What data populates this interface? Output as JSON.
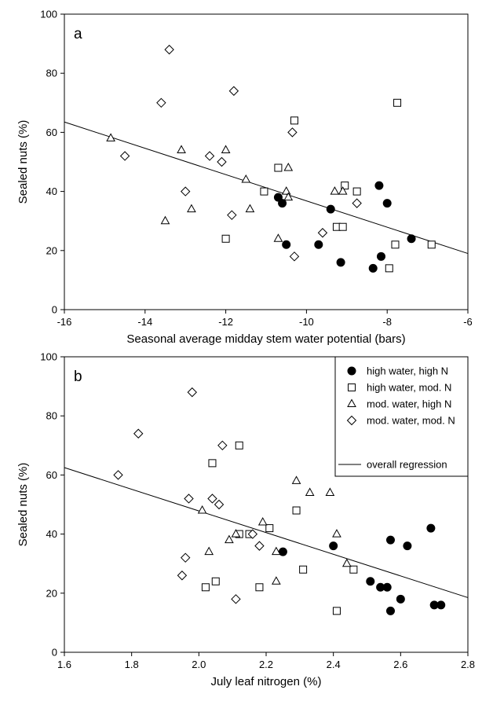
{
  "chart_data": [
    {
      "type": "scatter",
      "panel_label": "a",
      "xlabel": "Seasonal average midday stem water potential (bars)",
      "ylabel": "Sealed nuts (%)",
      "xlim": [
        -16,
        -6
      ],
      "ylim": [
        0,
        100
      ],
      "xticks": [
        -16,
        -14,
        -12,
        -10,
        -8,
        -6
      ],
      "yticks": [
        0,
        20,
        40,
        60,
        80,
        100
      ],
      "regression": {
        "x": [
          -16,
          -6
        ],
        "y": [
          63.5,
          19
        ]
      },
      "series": [
        {
          "name": "high water, high N",
          "marker": "circle-filled",
          "x": [
            -10.7,
            -10.6,
            -10.5,
            -9.7,
            -9.4,
            -9.15,
            -8.35,
            -8.2,
            -8.15,
            -8.0,
            -7.4
          ],
          "y": [
            38,
            36,
            22,
            22,
            34,
            16,
            14,
            42,
            18,
            36,
            24
          ]
        },
        {
          "name": "high water, mod. N",
          "marker": "square-open",
          "x": [
            -12.0,
            -10.7,
            -11.05,
            -10.3,
            -9.25,
            -9.1,
            -9.05,
            -8.75,
            -7.95,
            -7.8,
            -7.75,
            -6.9
          ],
          "y": [
            24,
            48,
            40,
            64,
            28,
            28,
            42,
            40,
            14,
            22,
            70,
            22
          ]
        },
        {
          "name": "mod. water, high N",
          "marker": "triangle-open",
          "x": [
            -14.85,
            -13.5,
            -13.1,
            -12.85,
            -12.0,
            -11.5,
            -11.4,
            -10.7,
            -10.5,
            -10.45,
            -10.45,
            -9.3,
            -9.1
          ],
          "y": [
            58,
            30,
            54,
            34,
            54,
            44,
            34,
            24,
            40,
            38,
            48,
            40,
            40
          ]
        },
        {
          "name": "mod. water, mod. N",
          "marker": "diamond-open",
          "x": [
            -14.5,
            -13.6,
            -13.4,
            -13.0,
            -12.4,
            -12.1,
            -11.85,
            -11.8,
            -10.35,
            -10.3,
            -9.6,
            -8.75
          ],
          "y": [
            52,
            70,
            88,
            40,
            52,
            50,
            32,
            74,
            60,
            18,
            26,
            36
          ]
        }
      ]
    },
    {
      "type": "scatter",
      "panel_label": "b",
      "xlabel": "July leaf nitrogen (%)",
      "ylabel": "Sealed nuts (%)",
      "xlim": [
        1.6,
        2.8
      ],
      "ylim": [
        0,
        100
      ],
      "xticks": [
        1.6,
        1.8,
        2.0,
        2.2,
        2.4,
        2.6,
        2.8
      ],
      "yticks": [
        0,
        20,
        40,
        60,
        80,
        100
      ],
      "legend_position": "top-right",
      "regression_label": "overall regression",
      "regression": {
        "x": [
          1.6,
          2.8
        ],
        "y": [
          62.5,
          18.5
        ]
      },
      "series": [
        {
          "name": "high water, high N",
          "marker": "circle-filled",
          "x": [
            2.25,
            2.4,
            2.51,
            2.54,
            2.56,
            2.57,
            2.57,
            2.6,
            2.62,
            2.69,
            2.7,
            2.72
          ],
          "y": [
            34,
            36,
            24,
            22,
            22,
            38,
            14,
            18,
            36,
            42,
            16,
            16
          ]
        },
        {
          "name": "high water, mod. N",
          "marker": "square-open",
          "x": [
            2.02,
            2.04,
            2.05,
            2.12,
            2.12,
            2.15,
            2.18,
            2.21,
            2.29,
            2.31,
            2.41,
            2.46
          ],
          "y": [
            22,
            64,
            24,
            70,
            40,
            40,
            22,
            42,
            48,
            28,
            14,
            28
          ]
        },
        {
          "name": "mod. water, high N",
          "marker": "triangle-open",
          "x": [
            2.01,
            2.03,
            2.09,
            2.11,
            2.19,
            2.23,
            2.23,
            2.29,
            2.33,
            2.39,
            2.41,
            2.44
          ],
          "y": [
            48,
            34,
            38,
            40,
            44,
            34,
            24,
            58,
            54,
            54,
            40,
            30
          ]
        },
        {
          "name": "mod. water, mod. N",
          "marker": "diamond-open",
          "x": [
            1.76,
            1.82,
            1.95,
            1.96,
            1.97,
            1.98,
            2.04,
            2.06,
            2.07,
            2.11,
            2.16,
            2.18
          ],
          "y": [
            60,
            74,
            26,
            32,
            52,
            88,
            52,
            50,
            70,
            18,
            40,
            36
          ]
        }
      ]
    }
  ]
}
